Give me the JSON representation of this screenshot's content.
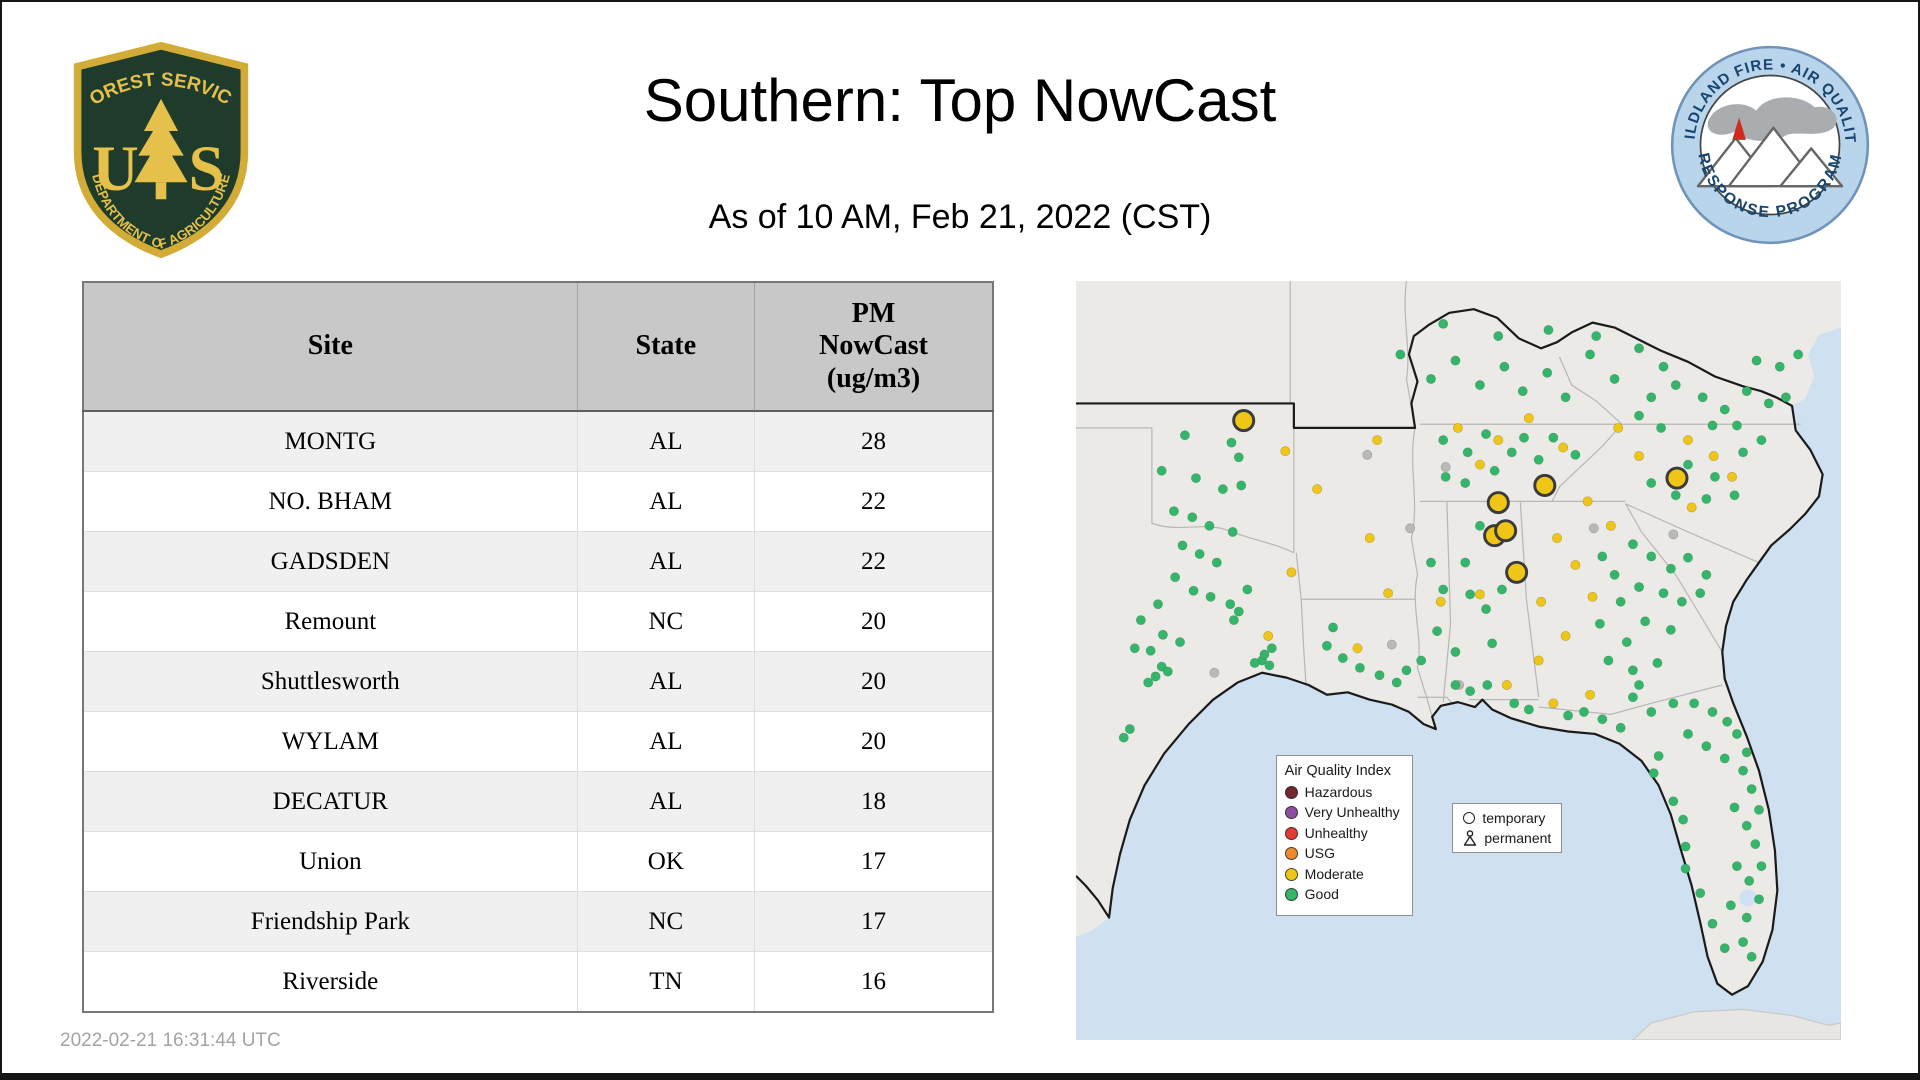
{
  "page": {
    "title": "Southern: Top NowCast",
    "subtitle": "As of 10 AM, Feb 21, 2022 (CST)",
    "timestamp": "2022-02-21 16:31:44 UTC"
  },
  "logos": {
    "forest_service": {
      "top_text": "FOREST SERVICE",
      "letter_left": "U",
      "letter_right": "S",
      "bottom_text": "DEPARTMENT OF AGRICULTURE"
    },
    "wfaqrp": {
      "top_text": "WILDLAND FIRE • AIR QUALITY",
      "bottom_text": "RESPONSE PROGRAM"
    }
  },
  "table": {
    "columns": [
      "Site",
      "State",
      "PM\nNowCast\n(ug/m3)"
    ],
    "rows": [
      {
        "site": "MONTG",
        "state": "AL",
        "value": 28
      },
      {
        "site": "NO. BHAM",
        "state": "AL",
        "value": 22
      },
      {
        "site": "GADSDEN",
        "state": "AL",
        "value": 22
      },
      {
        "site": "Remount",
        "state": "NC",
        "value": 20
      },
      {
        "site": "Shuttlesworth",
        "state": "AL",
        "value": 20
      },
      {
        "site": "WYLAM",
        "state": "AL",
        "value": 20
      },
      {
        "site": "DECATUR",
        "state": "AL",
        "value": 18
      },
      {
        "site": "Union",
        "state": "OK",
        "value": 17
      },
      {
        "site": "Friendship Park",
        "state": "NC",
        "value": 17
      },
      {
        "site": "Riverside",
        "state": "TN",
        "value": 16
      }
    ]
  },
  "map": {
    "colors": {
      "water": "#cfe0f1",
      "land": "#ebeae7",
      "state_border": "#b7b7b5",
      "region_border": "#1a1a1a"
    },
    "legend": {
      "title": "Air Quality Index",
      "items": [
        {
          "label": "Hazardous",
          "color": "#722630"
        },
        {
          "label": "Very Unhealthy",
          "color": "#8e4d9e"
        },
        {
          "label": "Unhealthy",
          "color": "#e23b33"
        },
        {
          "label": "USG",
          "color": "#ee8a2e"
        },
        {
          "label": "Moderate",
          "color": "#f0c616"
        },
        {
          "label": "Good",
          "color": "#35b56a"
        }
      ]
    },
    "marker_legend": {
      "temporary": "temporary",
      "permanent": "permanent"
    },
    "marker_colors": {
      "good": "#35b56a",
      "moderate": "#f0c616",
      "no_data": "#b9b9b9",
      "temporary_outline": "#3a3a3a"
    },
    "markers": {
      "temporary_moderate": [
        [
          137,
          114
        ],
        [
          345,
          181
        ],
        [
          383,
          167
        ],
        [
          342,
          208
        ],
        [
          351,
          204
        ],
        [
          360,
          238
        ],
        [
          491,
          161
        ]
      ],
      "moderate": [
        [
          171,
          139
        ],
        [
          197,
          170
        ],
        [
          176,
          238
        ],
        [
          157,
          290
        ],
        [
          246,
          130
        ],
        [
          312,
          120
        ],
        [
          345,
          130
        ],
        [
          370,
          112
        ],
        [
          398,
          136
        ],
        [
          443,
          120
        ],
        [
          460,
          143
        ],
        [
          500,
          130
        ],
        [
          521,
          143
        ],
        [
          536,
          160
        ],
        [
          503,
          185
        ],
        [
          393,
          210
        ],
        [
          408,
          232
        ],
        [
          422,
          258
        ],
        [
          380,
          262
        ],
        [
          400,
          290
        ],
        [
          378,
          310
        ],
        [
          352,
          330
        ],
        [
          390,
          345
        ],
        [
          420,
          338
        ],
        [
          240,
          210
        ],
        [
          255,
          255
        ],
        [
          230,
          300
        ],
        [
          298,
          262
        ],
        [
          330,
          150
        ],
        [
          418,
          180
        ],
        [
          437,
          200
        ],
        [
          330,
          256
        ]
      ],
      "no_data": [
        [
          273,
          202
        ],
        [
          423,
          202
        ],
        [
          113,
          320
        ],
        [
          258,
          297
        ],
        [
          313,
          330
        ],
        [
          488,
          207
        ],
        [
          302,
          152
        ],
        [
          238,
          142
        ]
      ],
      "good": [
        [
          89,
          126
        ],
        [
          127,
          132
        ],
        [
          133,
          144
        ],
        [
          70,
          155
        ],
        [
          98,
          161
        ],
        [
          120,
          170
        ],
        [
          135,
          167
        ],
        [
          80,
          188
        ],
        [
          95,
          193
        ],
        [
          109,
          200
        ],
        [
          128,
          205
        ],
        [
          87,
          216
        ],
        [
          101,
          223
        ],
        [
          115,
          230
        ],
        [
          81,
          242
        ],
        [
          96,
          253
        ],
        [
          110,
          258
        ],
        [
          67,
          264
        ],
        [
          53,
          277
        ],
        [
          71,
          289
        ],
        [
          85,
          295
        ],
        [
          61,
          302
        ],
        [
          70,
          315
        ],
        [
          75,
          319
        ],
        [
          65,
          323
        ],
        [
          59,
          328
        ],
        [
          44,
          366
        ],
        [
          39,
          373
        ],
        [
          126,
          264
        ],
        [
          133,
          270
        ],
        [
          129,
          277
        ],
        [
          152,
          310
        ],
        [
          158,
          314
        ],
        [
          146,
          312
        ],
        [
          154,
          305
        ],
        [
          160,
          300
        ],
        [
          48,
          300
        ],
        [
          140,
          252
        ],
        [
          205,
          298
        ],
        [
          218,
          308
        ],
        [
          232,
          316
        ],
        [
          248,
          322
        ],
        [
          262,
          328
        ],
        [
          210,
          283
        ],
        [
          270,
          318
        ],
        [
          282,
          310
        ],
        [
          290,
          230
        ],
        [
          300,
          252
        ],
        [
          295,
          286
        ],
        [
          310,
          303
        ],
        [
          330,
          200
        ],
        [
          348,
          252
        ],
        [
          335,
          268
        ],
        [
          340,
          296
        ],
        [
          322,
          256
        ],
        [
          318,
          230
        ],
        [
          300,
          130
        ],
        [
          320,
          140
        ],
        [
          335,
          125
        ],
        [
          356,
          140
        ],
        [
          366,
          128
        ],
        [
          342,
          155
        ],
        [
          378,
          146
        ],
        [
          390,
          128
        ],
        [
          408,
          142
        ],
        [
          302,
          160
        ],
        [
          318,
          165
        ],
        [
          290,
          80
        ],
        [
          310,
          65
        ],
        [
          330,
          85
        ],
        [
          350,
          70
        ],
        [
          365,
          90
        ],
        [
          385,
          75
        ],
        [
          400,
          95
        ],
        [
          420,
          60
        ],
        [
          440,
          80
        ],
        [
          345,
          45
        ],
        [
          386,
          40
        ],
        [
          425,
          45
        ],
        [
          460,
          55
        ],
        [
          480,
          70
        ],
        [
          300,
          35
        ],
        [
          265,
          60
        ],
        [
          470,
          95
        ],
        [
          490,
          85
        ],
        [
          512,
          95
        ],
        [
          530,
          105
        ],
        [
          548,
          90
        ],
        [
          566,
          100
        ],
        [
          580,
          95
        ],
        [
          590,
          60
        ],
        [
          575,
          70
        ],
        [
          556,
          65
        ],
        [
          540,
          118
        ],
        [
          520,
          118
        ],
        [
          478,
          120
        ],
        [
          460,
          110
        ],
        [
          500,
          150
        ],
        [
          522,
          160
        ],
        [
          545,
          140
        ],
        [
          560,
          130
        ],
        [
          538,
          175
        ],
        [
          515,
          178
        ],
        [
          490,
          175
        ],
        [
          470,
          165
        ],
        [
          455,
          215
        ],
        [
          470,
          225
        ],
        [
          486,
          235
        ],
        [
          500,
          226
        ],
        [
          515,
          240
        ],
        [
          480,
          255
        ],
        [
          460,
          250
        ],
        [
          440,
          240
        ],
        [
          430,
          225
        ],
        [
          495,
          262
        ],
        [
          510,
          255
        ],
        [
          445,
          262
        ],
        [
          465,
          278
        ],
        [
          486,
          285
        ],
        [
          450,
          295
        ],
        [
          428,
          280
        ],
        [
          435,
          310
        ],
        [
          455,
          318
        ],
        [
          475,
          312
        ],
        [
          310,
          330
        ],
        [
          322,
          335
        ],
        [
          336,
          330
        ],
        [
          358,
          345
        ],
        [
          370,
          350
        ],
        [
          402,
          355
        ],
        [
          415,
          352
        ],
        [
          430,
          358
        ],
        [
          445,
          365
        ],
        [
          455,
          340
        ],
        [
          470,
          352
        ],
        [
          488,
          345
        ],
        [
          505,
          345
        ],
        [
          520,
          352
        ],
        [
          532,
          360
        ],
        [
          540,
          370
        ],
        [
          548,
          385
        ],
        [
          530,
          390
        ],
        [
          515,
          380
        ],
        [
          500,
          370
        ],
        [
          545,
          400
        ],
        [
          552,
          415
        ],
        [
          558,
          432
        ],
        [
          548,
          445
        ],
        [
          538,
          430
        ],
        [
          555,
          460
        ],
        [
          560,
          478
        ],
        [
          550,
          490
        ],
        [
          540,
          478
        ],
        [
          558,
          505
        ],
        [
          548,
          520
        ],
        [
          535,
          510
        ],
        [
          545,
          540
        ],
        [
          552,
          552
        ],
        [
          530,
          545
        ],
        [
          520,
          525
        ],
        [
          510,
          500
        ],
        [
          498,
          480
        ],
        [
          496,
          440
        ],
        [
          488,
          425
        ],
        [
          472,
          402
        ],
        [
          476,
          388
        ],
        [
          498,
          462
        ],
        [
          460,
          330
        ]
      ]
    }
  },
  "chart_data": {
    "type": "table",
    "title": "Southern: Top NowCast",
    "columns": [
      "Site",
      "State",
      "PM NowCast (ug/m3)"
    ],
    "rows": [
      [
        "MONTG",
        "AL",
        28
      ],
      [
        "NO. BHAM",
        "AL",
        22
      ],
      [
        "GADSDEN",
        "AL",
        22
      ],
      [
        "Remount",
        "NC",
        20
      ],
      [
        "Shuttlesworth",
        "AL",
        20
      ],
      [
        "WYLAM",
        "AL",
        20
      ],
      [
        "DECATUR",
        "AL",
        18
      ],
      [
        "Union",
        "OK",
        17
      ],
      [
        "Friendship Park",
        "NC",
        17
      ],
      [
        "Riverside",
        "TN",
        16
      ]
    ]
  }
}
